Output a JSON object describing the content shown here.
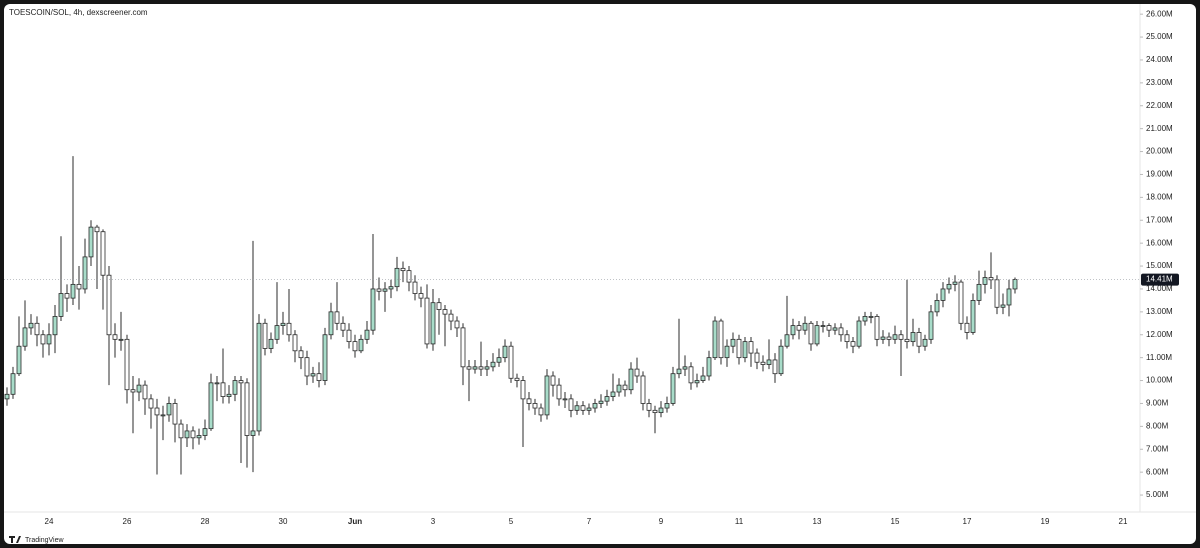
{
  "chart_data": {
    "type": "candlestick",
    "title": "TOESCOIN/SOL, 4h, dexscreener.com",
    "branding": "TradingView",
    "up_color": "#a8dcc9",
    "down_color": "#ffffff",
    "outline_color": "#2b2b2b",
    "ylim": [
      4.26,
      26.4
    ],
    "yticks": [
      {
        "value": 5,
        "label": "5.00M"
      },
      {
        "value": 6,
        "label": "6.00M"
      },
      {
        "value": 7,
        "label": "7.00M"
      },
      {
        "value": 8,
        "label": "8.00M"
      },
      {
        "value": 9,
        "label": "9.00M"
      },
      {
        "value": 10,
        "label": "10.00M"
      },
      {
        "value": 11,
        "label": "11.00M"
      },
      {
        "value": 12,
        "label": "12.00M"
      },
      {
        "value": 13,
        "label": "13.00M"
      },
      {
        "value": 14,
        "label": "14.00M"
      },
      {
        "value": 15,
        "label": "15.00M"
      },
      {
        "value": 16,
        "label": "16.00M"
      },
      {
        "value": 17,
        "label": "17.00M"
      },
      {
        "value": 18,
        "label": "18.00M"
      },
      {
        "value": 19,
        "label": "19.00M"
      },
      {
        "value": 20,
        "label": "20.00M"
      },
      {
        "value": 21,
        "label": "21.00M"
      },
      {
        "value": 22,
        "label": "22.00M"
      },
      {
        "value": 23,
        "label": "23.00M"
      },
      {
        "value": 24,
        "label": "24.00M"
      },
      {
        "value": 25,
        "label": "25.00M"
      },
      {
        "value": 26,
        "label": "26.00M"
      }
    ],
    "current_price": {
      "value": 14.41,
      "label": "14.41M"
    },
    "categories": [
      null,
      null,
      null,
      null,
      null,
      null,
      null,
      "24",
      null,
      null,
      null,
      null,
      null,
      null,
      null,
      null,
      null,
      null,
      null,
      null,
      "26",
      null,
      null,
      null,
      null,
      null,
      null,
      null,
      null,
      null,
      null,
      null,
      null,
      "28",
      null,
      null,
      null,
      null,
      null,
      null,
      null,
      null,
      null,
      null,
      null,
      null,
      "30",
      null,
      null,
      null,
      null,
      null,
      null,
      null,
      null,
      null,
      null,
      null,
      "Jun",
      null,
      null,
      null,
      null,
      null,
      null,
      null,
      null,
      null,
      null,
      null,
      null,
      "3",
      null,
      null,
      null,
      null,
      null,
      null,
      null,
      null,
      null,
      null,
      null,
      null,
      "5",
      null,
      null,
      null,
      null,
      null,
      null,
      null,
      null,
      null,
      null,
      null,
      null,
      "7",
      null,
      null,
      null,
      null,
      null,
      null,
      null,
      null,
      null,
      null,
      null,
      "9",
      null,
      null,
      null,
      null,
      null,
      null,
      null,
      null,
      null,
      null,
      null,
      null,
      "11",
      null,
      null,
      null,
      null,
      null,
      null,
      null,
      null,
      null,
      null,
      null,
      null,
      "13",
      null,
      null,
      null,
      null,
      null,
      null,
      null,
      null,
      null,
      null,
      null,
      null,
      "15",
      null,
      null,
      null,
      null,
      null,
      null,
      null,
      null,
      null,
      null,
      null,
      "17",
      null,
      null,
      null,
      null,
      null,
      null,
      null,
      null,
      null,
      null,
      null,
      null,
      "19",
      null,
      null,
      null,
      null,
      null,
      null,
      null,
      null,
      null,
      null,
      null,
      null,
      "21"
    ],
    "open": [
      9.2,
      9.4,
      10.3,
      11.5,
      12.3,
      12.5,
      12.0,
      11.6,
      12.0,
      12.8,
      13.8,
      13.6,
      14.2,
      14.0,
      15.4,
      16.7,
      16.5,
      14.6,
      12.0,
      11.8,
      11.8,
      9.6,
      9.5,
      9.8,
      9.2,
      8.8,
      8.5,
      8.5,
      9.0,
      8.1,
      7.5,
      7.8,
      7.5,
      7.6,
      7.9,
      9.9,
      9.9,
      9.3,
      9.4,
      10.0,
      9.9,
      7.6,
      7.8,
      12.5,
      11.4,
      11.8,
      12.4,
      12.5,
      12.0,
      11.3,
      11.0,
      10.2,
      10.3,
      10.0,
      12.0,
      13.0,
      12.5,
      12.2,
      11.7,
      11.3,
      11.8,
      12.2,
      14.0,
      13.9,
      14.0,
      14.1,
      14.9,
      14.8,
      14.3,
      13.8,
      13.6,
      11.6,
      13.4,
      13.1,
      12.9,
      12.6,
      12.3,
      10.6,
      10.5,
      10.6,
      10.5,
      10.6,
      10.8,
      11.0,
      11.5,
      10.1,
      10.0,
      9.2,
      9.0,
      8.8,
      8.5,
      10.2,
      9.8,
      9.2,
      9.2,
      8.7,
      8.9,
      8.7,
      8.8,
      9.0,
      9.1,
      9.3,
      9.5,
      9.8,
      9.6,
      10.5,
      10.2,
      9.0,
      8.7,
      8.6,
      8.8,
      9.0,
      10.3,
      10.5,
      10.6,
      9.9,
      10.0,
      10.2,
      11.0,
      12.6,
      11.0,
      11.5,
      11.8,
      11.0,
      11.7,
      11.2,
      10.8,
      10.7,
      10.9,
      10.3,
      11.5,
      12.0,
      12.4,
      12.2,
      12.5,
      11.6,
      12.4,
      12.4,
      12.2,
      12.3,
      12.0,
      11.7,
      11.5,
      12.6,
      12.8,
      12.8,
      11.8,
      11.9,
      11.8,
      12.0,
      11.8,
      11.7,
      12.1,
      11.5,
      11.8,
      13.0,
      13.5,
      14.0,
      14.2,
      14.3,
      12.5,
      12.1,
      13.5,
      14.2,
      14.5,
      14.4,
      13.2,
      13.3,
      14.0,
      null,
      null,
      null,
      null,
      null,
      null,
      null,
      null,
      null,
      null,
      null,
      null,
      null,
      null,
      null,
      null,
      null,
      null
    ],
    "high": [
      9.7,
      10.6,
      12.8,
      13.5,
      12.9,
      12.8,
      12.2,
      12.5,
      13.3,
      16.3,
      14.2,
      19.8,
      15.0,
      16.2,
      17.0,
      16.8,
      16.6,
      15.0,
      12.5,
      13.0,
      12.0,
      10.2,
      10.1,
      10.0,
      9.4,
      9.2,
      8.9,
      9.3,
      9.2,
      8.3,
      8.1,
      8.0,
      7.9,
      8.3,
      10.3,
      10.2,
      11.4,
      9.8,
      10.2,
      10.2,
      10.1,
      16.1,
      12.9,
      12.7,
      12.1,
      14.3,
      13.0,
      14.0,
      12.2,
      11.5,
      11.3,
      10.6,
      10.8,
      12.3,
      13.4,
      14.3,
      12.8,
      12.5,
      12.0,
      12.0,
      12.6,
      16.4,
      14.5,
      14.3,
      14.4,
      15.4,
      15.2,
      15.0,
      14.6,
      14.1,
      14.2,
      14.0,
      13.6,
      13.3,
      13.1,
      12.8,
      12.5,
      10.9,
      10.9,
      11.7,
      10.9,
      11.2,
      11.4,
      11.8,
      11.7,
      10.3,
      10.2,
      9.5,
      9.2,
      9.0,
      10.5,
      10.4,
      10.1,
      9.5,
      9.4,
      9.1,
      9.1,
      9.0,
      9.2,
      9.4,
      9.6,
      10.3,
      10.1,
      10.0,
      10.8,
      11.0,
      10.4,
      9.2,
      8.9,
      9.1,
      9.3,
      10.6,
      12.7,
      11.1,
      10.8,
      10.3,
      10.6,
      11.3,
      12.8,
      12.7,
      11.8,
      12.1,
      12.0,
      11.9,
      11.9,
      11.4,
      11.1,
      11.8,
      11.2,
      11.8,
      13.7,
      12.7,
      12.6,
      12.8,
      12.6,
      12.6,
      12.6,
      12.5,
      12.5,
      12.5,
      12.2,
      11.9,
      12.8,
      13.0,
      13.0,
      12.9,
      12.2,
      12.1,
      12.4,
      12.2,
      14.4,
      12.7,
      12.3,
      12.0,
      13.3,
      13.8,
      14.3,
      14.5,
      14.6,
      14.4,
      12.8,
      13.8,
      14.8,
      14.8,
      15.6,
      14.6,
      13.8,
      14.4,
      14.5,
      null,
      null,
      null,
      null,
      null,
      null,
      null,
      null,
      null,
      null,
      null,
      null,
      null,
      null,
      null,
      null,
      null,
      null
    ],
    "low": [
      8.9,
      9.2,
      10.2,
      11.3,
      12.0,
      11.5,
      11.0,
      11.1,
      11.2,
      12.6,
      13.0,
      13.3,
      13.1,
      13.8,
      15.0,
      14.0,
      13.1,
      9.8,
      11.0,
      11.3,
      9.0,
      7.7,
      9.1,
      8.5,
      7.9,
      5.9,
      7.4,
      8.2,
      7.3,
      5.9,
      7.1,
      7.0,
      7.2,
      7.4,
      7.8,
      9.1,
      9.0,
      9.0,
      9.1,
      6.4,
      6.2,
      6.0,
      7.6,
      11.1,
      11.2,
      11.6,
      12.0,
      11.7,
      10.8,
      10.5,
      9.8,
      9.9,
      9.7,
      9.8,
      11.8,
      12.2,
      11.9,
      11.4,
      11.0,
      11.2,
      11.6,
      12.0,
      13.5,
      13.0,
      13.6,
      13.9,
      14.3,
      13.9,
      13.5,
      13.2,
      11.4,
      11.3,
      12.0,
      11.5,
      12.2,
      11.9,
      9.8,
      9.1,
      10.3,
      10.2,
      10.2,
      10.4,
      10.6,
      10.8,
      9.9,
      9.7,
      7.1,
      8.7,
      8.5,
      8.2,
      8.3,
      9.3,
      8.9,
      8.8,
      8.4,
      8.5,
      8.5,
      8.5,
      8.6,
      8.8,
      8.9,
      9.1,
      9.3,
      9.3,
      9.4,
      9.9,
      8.7,
      8.4,
      7.7,
      8.4,
      8.6,
      8.9,
      10.1,
      10.2,
      9.6,
      9.7,
      9.9,
      10.0,
      10.9,
      10.7,
      10.6,
      11.2,
      10.7,
      10.8,
      10.6,
      10.5,
      10.4,
      10.5,
      9.9,
      10.2,
      11.4,
      11.8,
      11.8,
      12.0,
      11.3,
      11.5,
      12.1,
      11.9,
      12.0,
      11.7,
      11.4,
      11.2,
      11.4,
      12.4,
      12.5,
      11.5,
      11.6,
      11.5,
      11.6,
      10.2,
      11.4,
      11.5,
      11.2,
      11.3,
      11.6,
      12.8,
      13.2,
      13.8,
      13.9,
      12.2,
      11.8,
      12.0,
      13.3,
      13.8,
      14.0,
      12.9,
      12.9,
      12.8,
      13.8,
      null,
      null,
      null,
      null,
      null,
      null,
      null,
      null,
      null,
      null,
      null,
      null,
      null,
      null,
      null,
      null,
      null,
      null
    ],
    "close": [
      9.4,
      10.3,
      11.5,
      12.3,
      12.5,
      12.0,
      11.6,
      12.0,
      12.8,
      13.8,
      13.6,
      14.2,
      14.0,
      15.4,
      16.7,
      16.5,
      14.6,
      12.0,
      11.8,
      11.8,
      9.6,
      9.5,
      9.8,
      9.2,
      8.8,
      8.5,
      8.5,
      9.0,
      8.1,
      7.5,
      7.8,
      7.5,
      7.6,
      7.9,
      9.9,
      9.9,
      9.3,
      9.4,
      10.0,
      9.9,
      7.6,
      7.8,
      12.5,
      11.4,
      11.8,
      12.4,
      12.5,
      12.0,
      11.3,
      11.0,
      10.2,
      10.3,
      10.0,
      12.0,
      13.0,
      12.5,
      12.2,
      11.7,
      11.3,
      11.8,
      12.2,
      14.0,
      13.9,
      14.0,
      14.1,
      14.9,
      14.8,
      14.3,
      13.8,
      13.6,
      11.6,
      13.4,
      13.1,
      12.9,
      12.6,
      12.3,
      10.6,
      10.5,
      10.6,
      10.5,
      10.6,
      10.8,
      11.0,
      11.5,
      10.1,
      10.0,
      9.2,
      9.0,
      8.8,
      8.5,
      10.2,
      9.8,
      9.2,
      9.2,
      8.7,
      8.9,
      8.7,
      8.8,
      9.0,
      9.1,
      9.3,
      9.5,
      9.8,
      9.6,
      10.5,
      10.2,
      9.0,
      8.7,
      8.6,
      8.8,
      9.0,
      10.3,
      10.5,
      10.6,
      9.9,
      10.0,
      10.2,
      11.0,
      12.6,
      11.0,
      11.5,
      11.8,
      11.0,
      11.7,
      11.2,
      10.8,
      10.7,
      10.9,
      10.3,
      11.5,
      12.0,
      12.4,
      12.2,
      12.5,
      11.6,
      12.4,
      12.4,
      12.2,
      12.3,
      12.0,
      11.7,
      11.5,
      12.6,
      12.8,
      12.8,
      11.8,
      11.9,
      11.8,
      12.0,
      11.8,
      11.7,
      12.1,
      11.5,
      11.8,
      13.0,
      13.5,
      14.0,
      14.2,
      14.3,
      12.5,
      12.1,
      13.5,
      14.2,
      14.5,
      14.4,
      13.2,
      13.3,
      14.0,
      14.41,
      null,
      null,
      null,
      null,
      null,
      null,
      null,
      null,
      null,
      null,
      null,
      null,
      null,
      null,
      null,
      null,
      null,
      null
    ]
  }
}
